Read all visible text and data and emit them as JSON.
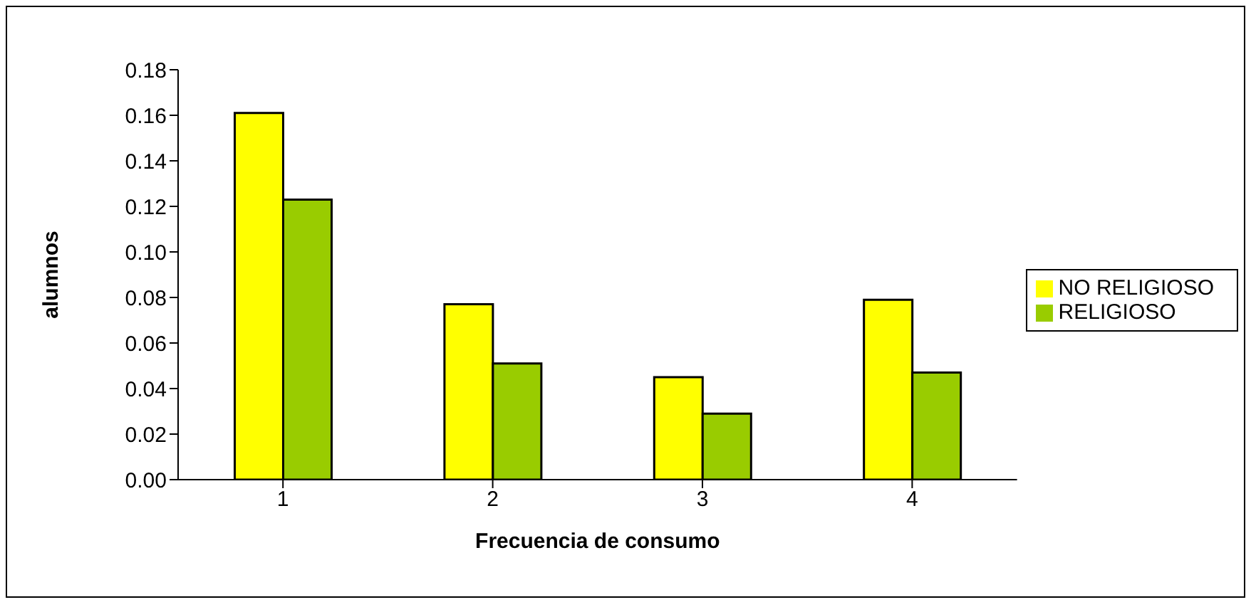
{
  "chart_data": {
    "type": "bar",
    "xlabel": "Frecuencia de consumo",
    "ylabel": "alumnos",
    "categories": [
      "1",
      "2",
      "3",
      "4"
    ],
    "series": [
      {
        "name": "NO RELIGIOSO",
        "color": "#ffff00",
        "values": [
          0.161,
          0.077,
          0.045,
          0.079
        ]
      },
      {
        "name": "RELIGIOSO",
        "color": "#99cc00",
        "values": [
          0.123,
          0.051,
          0.029,
          0.047
        ]
      }
    ],
    "ylim": [
      0,
      0.18
    ],
    "yticks": [
      {
        "value": 0,
        "label": "0.00"
      },
      0.02,
      0.04,
      0.06,
      0.08,
      {
        "value": 0.1,
        "label": "0.10"
      },
      0.12,
      0.14,
      0.16,
      0.18
    ],
    "grid": false,
    "legend": "right"
  }
}
